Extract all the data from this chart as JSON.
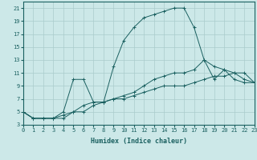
{
  "xlabel": "Humidex (Indice chaleur)",
  "bg_color": "#cce8e8",
  "grid_color": "#aacccc",
  "line_color": "#1a6060",
  "line1_x": [
    0,
    1,
    2,
    3,
    4,
    5,
    6,
    7,
    8,
    9,
    10,
    11,
    12,
    13,
    14,
    15,
    16,
    17,
    18,
    19,
    20,
    21,
    22,
    23
  ],
  "line1_y": [
    5,
    4,
    4,
    4,
    4,
    5,
    5,
    6,
    6.5,
    7,
    7,
    7.5,
    8,
    8.5,
    9,
    9,
    9,
    9.5,
    10,
    10.5,
    10.5,
    11,
    11,
    9.5
  ],
  "line2_x": [
    0,
    1,
    2,
    3,
    4,
    5,
    6,
    7,
    8,
    9,
    10,
    11,
    12,
    13,
    14,
    15,
    16,
    17,
    18,
    19,
    20,
    21,
    22,
    23
  ],
  "line2_y": [
    5,
    4,
    4,
    4,
    4.5,
    5,
    6,
    6.5,
    6.5,
    7,
    7.5,
    8,
    9,
    10,
    10.5,
    11,
    11,
    11.5,
    13,
    12,
    11.5,
    11,
    10,
    9.5
  ],
  "line3_x": [
    0,
    1,
    2,
    3,
    4,
    5,
    6,
    7,
    8,
    9,
    10,
    11,
    12,
    13,
    14,
    15,
    16,
    17,
    18,
    19,
    20,
    21,
    22,
    23
  ],
  "line3_y": [
    5,
    4,
    4,
    4,
    5,
    10,
    10,
    6.5,
    6.5,
    12,
    16,
    18,
    19.5,
    20,
    20.5,
    21,
    21,
    18,
    13,
    10,
    11.5,
    10,
    9.5,
    9.5
  ],
  "xlim": [
    0,
    23
  ],
  "ylim": [
    3,
    22
  ],
  "yticks": [
    3,
    5,
    7,
    9,
    11,
    13,
    15,
    17,
    19,
    21
  ],
  "xticks": [
    0,
    1,
    2,
    3,
    4,
    5,
    6,
    7,
    8,
    9,
    10,
    11,
    12,
    13,
    14,
    15,
    16,
    17,
    18,
    19,
    20,
    21,
    22,
    23
  ],
  "xlabel_fontsize": 6,
  "tick_fontsize": 5
}
